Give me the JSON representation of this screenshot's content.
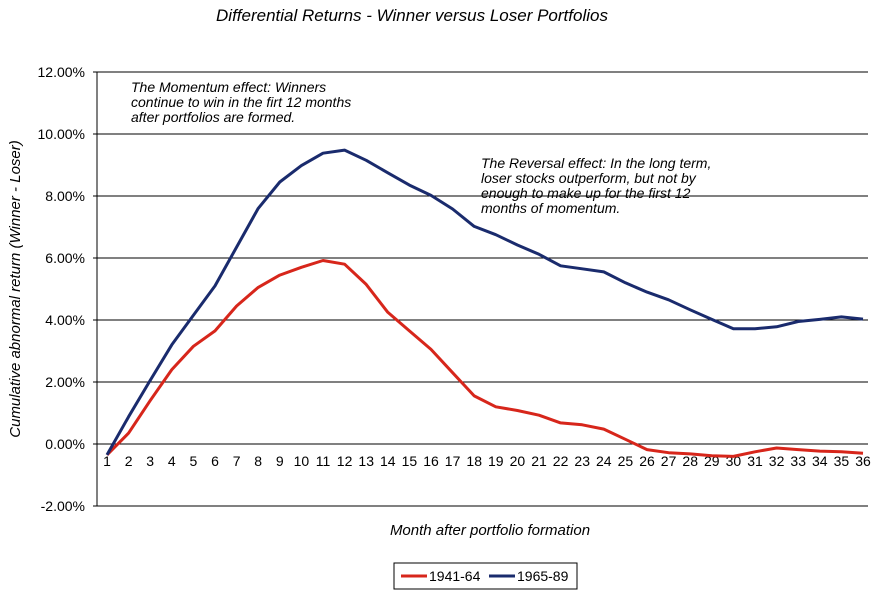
{
  "chart_data": {
    "type": "line",
    "title": "Differential Returns - Winner versus Loser Portfolios",
    "xlabel": "Month after portfolio formation",
    "ylabel": "Cumulative abnormal return (Winner - Loser)",
    "ylim": [
      -0.02,
      0.12
    ],
    "yticks": [
      -0.02,
      0,
      0.02,
      0.04,
      0.06,
      0.08,
      0.1,
      0.12
    ],
    "ytick_labels": [
      "-2.00%",
      "0.00%",
      "2.00%",
      "4.00%",
      "6.00%",
      "8.00%",
      "10.00%",
      "12.00%"
    ],
    "grid": "horizontal",
    "legend_position": "bottom",
    "x": [
      1,
      2,
      3,
      4,
      5,
      6,
      7,
      8,
      9,
      10,
      11,
      12,
      13,
      14,
      15,
      16,
      17,
      18,
      19,
      20,
      21,
      22,
      23,
      24,
      25,
      26,
      27,
      28,
      29,
      30,
      31,
      32,
      33,
      34,
      35,
      36
    ],
    "series": [
      {
        "name": "1941-64",
        "color": "#d7261b",
        "values": [
          -0.0035,
          0.0035,
          0.014,
          0.024,
          0.0315,
          0.0365,
          0.0445,
          0.0505,
          0.0545,
          0.057,
          0.0592,
          0.058,
          0.0515,
          0.0425,
          0.0365,
          0.0305,
          0.023,
          0.0155,
          0.012,
          0.0108,
          0.0093,
          0.0068,
          0.0062,
          0.0048,
          0.0015,
          -0.0018,
          -0.0028,
          -0.0032,
          -0.0038,
          -0.004,
          -0.0025,
          -0.0013,
          -0.0018,
          -0.0023,
          -0.0025,
          -0.003
        ]
      },
      {
        "name": "1965-89",
        "color": "#1a2b6d",
        "values": [
          -0.0035,
          0.0088,
          0.0205,
          0.032,
          0.0415,
          0.051,
          0.0635,
          0.076,
          0.0845,
          0.0898,
          0.0938,
          0.0948,
          0.0915,
          0.0875,
          0.0835,
          0.0802,
          0.0758,
          0.0702,
          0.0675,
          0.0642,
          0.0612,
          0.0575,
          0.0565,
          0.0555,
          0.052,
          0.049,
          0.0465,
          0.0433,
          0.0402,
          0.0372,
          0.0372,
          0.0378,
          0.0395,
          0.0402,
          0.041,
          0.0403
        ]
      }
    ],
    "annotations": [
      {
        "id": "momentum",
        "lines": [
          "The Momentum effect: Winners",
          "continue to win in the firt 12 months",
          "after portfolios are formed."
        ]
      },
      {
        "id": "reversal",
        "lines": [
          "The Reversal effect: In the long term,",
          "loser stocks outperform, but not by",
          "enough to make up for the first 12",
          "months of momentum."
        ]
      }
    ]
  }
}
